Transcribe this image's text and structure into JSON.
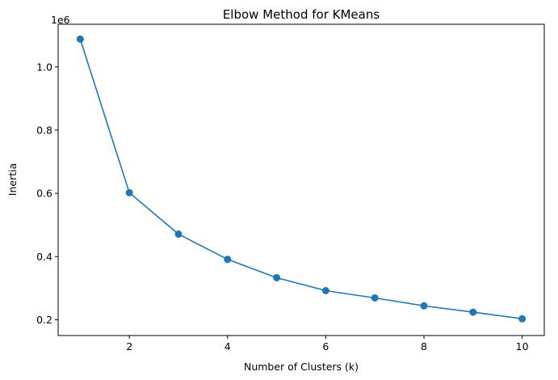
{
  "chart_data": {
    "type": "line",
    "title": "Elbow Method for KMeans",
    "xlabel": "Number of Clusters (k)",
    "ylabel": "Inertia",
    "y_scale_label": "1e6",
    "xlim": [
      0.55,
      10.45
    ],
    "ylim": [
      150000,
      1135000
    ],
    "x_ticks": [
      2,
      4,
      6,
      8,
      10
    ],
    "x_tick_labels": [
      "2",
      "4",
      "6",
      "8",
      "10"
    ],
    "y_ticks": [
      200000,
      400000,
      600000,
      800000,
      1000000
    ],
    "y_tick_labels": [
      "0.2",
      "0.4",
      "0.6",
      "0.8",
      "1.0"
    ],
    "grid": false,
    "series": [
      {
        "color": "#1f77b4",
        "marker": "circle",
        "x": [
          1,
          2,
          3,
          4,
          5,
          6,
          7,
          8,
          9,
          10
        ],
        "y": [
          1088000,
          602000,
          471000,
          391000,
          333000,
          292000,
          269000,
          244000,
          224000,
          203000
        ]
      }
    ]
  }
}
